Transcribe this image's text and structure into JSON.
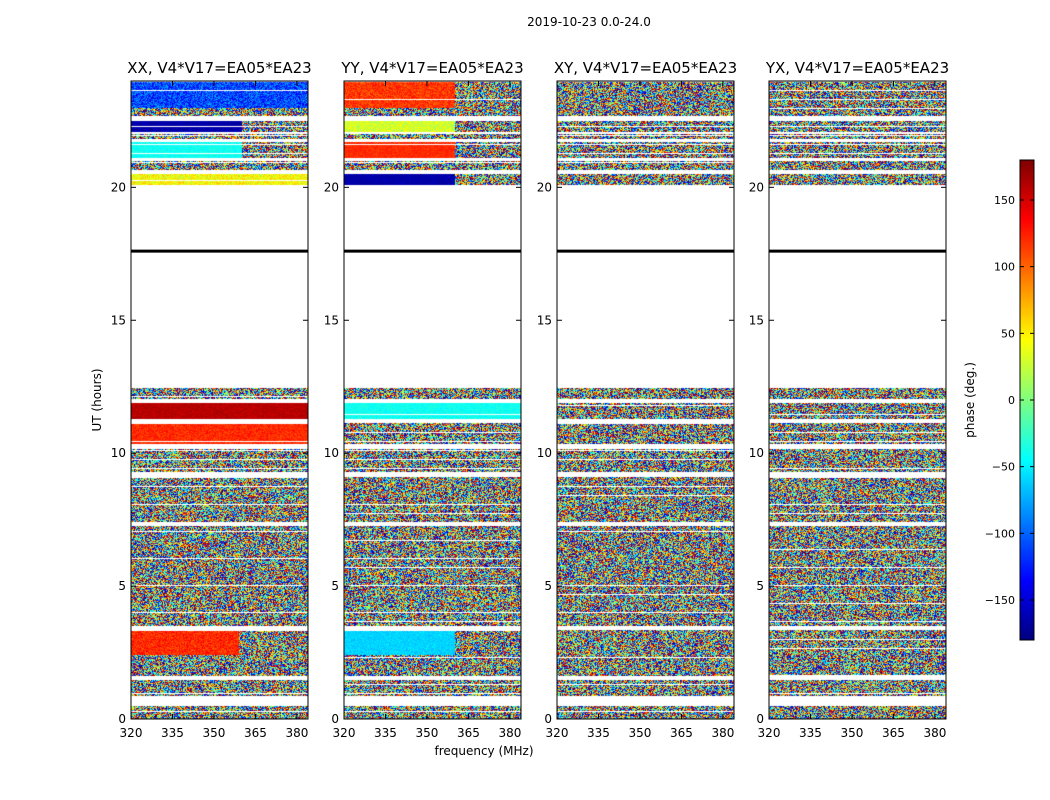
{
  "figure": {
    "suptitle": "2019-10-23 0.0-24.0"
  },
  "chart_data": {
    "type": "heatmap",
    "suptitle": "2019-10-23 0.0-24.0",
    "xlabel": "frequency (MHz)",
    "ylabel": "UT (hours)",
    "xlim": [
      320,
      384
    ],
    "ylim": [
      0,
      24
    ],
    "xticks": [
      320,
      335,
      350,
      365,
      380
    ],
    "yticks": [
      0,
      5,
      10,
      15,
      20
    ],
    "colorbar": {
      "label": "phase (deg.)",
      "range": [
        -180,
        180
      ],
      "ticks": [
        -150,
        -100,
        -50,
        0,
        50,
        100,
        150
      ],
      "tick_labels": [
        "−150",
        "−100",
        "−50",
        "0",
        "50",
        "100",
        "150"
      ],
      "colormap": "jet",
      "jet_stops": [
        "#00007f",
        "#0000ff",
        "#007fff",
        "#00ffff",
        "#7fff7f",
        "#ffff00",
        "#ff7f00",
        "#ff0000",
        "#7f0000"
      ]
    },
    "panels": [
      {
        "title": "XX, V4*V17=EA05*EA23",
        "pol": "XX"
      },
      {
        "title": "YY, V4*V17=EA05*EA23",
        "pol": "YY"
      },
      {
        "title": "XY, V4*V17=EA05*EA23",
        "pol": "XY"
      },
      {
        "title": "YX, V4*V17=EA05*EA23",
        "pol": "YX"
      }
    ],
    "data_ut_ranges": [
      [
        0.0,
        12.45
      ],
      [
        20.1,
        23.95
      ]
    ],
    "flag_gaps_ut": [
      0.5,
      0.85,
      1.45,
      1.6,
      3.35,
      3.5,
      7.25,
      7.4,
      9.1,
      9.3,
      10.15,
      10.35,
      11.15,
      11.3,
      11.9,
      12.05,
      20.5,
      20.65,
      21.0,
      21.1,
      21.7,
      21.8,
      22.0,
      22.1,
      22.5,
      22.7
    ],
    "black_line_ut": 17.6,
    "coherent_bands": [
      {
        "panel": 0,
        "ut": [
          23.0,
          24.0
        ],
        "f": [
          320,
          384
        ],
        "phase": -110,
        "spread": 80
      },
      {
        "panel": 0,
        "ut": [
          22.1,
          22.5
        ],
        "f": [
          320,
          360
        ],
        "phase": -165,
        "spread": 20
      },
      {
        "panel": 0,
        "ut": [
          21.1,
          21.7
        ],
        "f": [
          320,
          360
        ],
        "phase": -40,
        "spread": 20
      },
      {
        "panel": 0,
        "ut": [
          20.1,
          20.5
        ],
        "f": [
          320,
          384
        ],
        "phase": 45,
        "spread": 50
      },
      {
        "panel": 0,
        "ut": [
          11.3,
          11.9
        ],
        "f": [
          320,
          384
        ],
        "phase": 160,
        "spread": 20
      },
      {
        "panel": 0,
        "ut": [
          10.35,
          11.15
        ],
        "f": [
          320,
          384
        ],
        "phase": 120,
        "spread": 30
      },
      {
        "panel": 0,
        "ut": [
          2.4,
          3.35
        ],
        "f": [
          320,
          359
        ],
        "phase": 120,
        "spread": 40
      },
      {
        "panel": 1,
        "ut": [
          23.0,
          24.0
        ],
        "f": [
          320,
          360
        ],
        "phase": 115,
        "spread": 40
      },
      {
        "panel": 1,
        "ut": [
          22.1,
          22.5
        ],
        "f": [
          320,
          360
        ],
        "phase": 30,
        "spread": 40
      },
      {
        "panel": 1,
        "ut": [
          21.1,
          21.7
        ],
        "f": [
          320,
          360
        ],
        "phase": 120,
        "spread": 20
      },
      {
        "panel": 1,
        "ut": [
          20.1,
          20.5
        ],
        "f": [
          320,
          360
        ],
        "phase": -165,
        "spread": 20
      },
      {
        "panel": 1,
        "ut": [
          11.3,
          11.9
        ],
        "f": [
          320,
          384
        ],
        "phase": -40,
        "spread": 20
      },
      {
        "panel": 1,
        "ut": [
          2.4,
          3.35
        ],
        "f": [
          320,
          360
        ],
        "phase": -60,
        "spread": 20
      }
    ]
  }
}
